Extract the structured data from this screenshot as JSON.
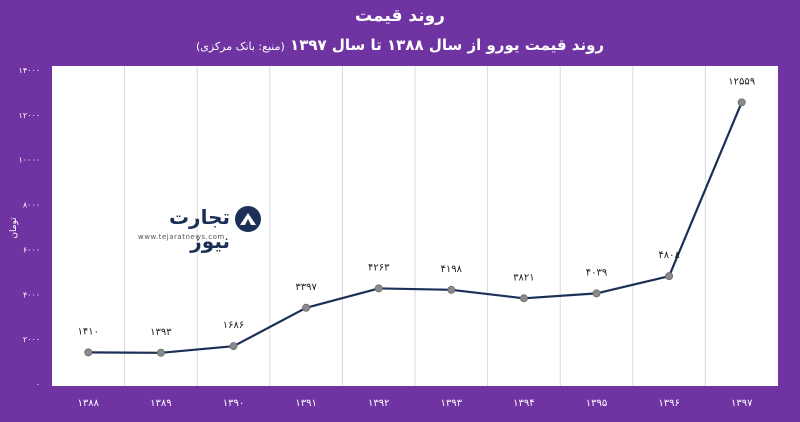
{
  "title": "روند قیمت",
  "subtitle": "روند قیمت یورو از سال ۱۳۸۸ تا سال ۱۳۹۷",
  "source": "(منبع: بانک مرکزی)",
  "watermark": {
    "name": "تجارت نیوز",
    "url": "www.tejaratnews.com"
  },
  "colors": {
    "background": "#6f34a2",
    "plot": "#ffffff",
    "line": "#1c2f57",
    "marker": "#8a8a8a",
    "grid": "#d9d9d9"
  },
  "chart_data": {
    "type": "line",
    "ylabel": "تومان",
    "ylim": [
      0,
      14000
    ],
    "yticks": [
      0,
      2000,
      4000,
      6000,
      8000,
      10000,
      12000,
      14000
    ],
    "ytick_labels": [
      "۰",
      "۲۰۰۰",
      "۴۰۰۰",
      "۶۰۰۰",
      "۸۰۰۰",
      "۱۰۰۰۰",
      "۱۲۰۰۰",
      "۱۴۰۰۰"
    ],
    "categories": [
      "۱۳۸۸",
      "۱۳۸۹",
      "۱۳۹۰",
      "۱۳۹۱",
      "۱۳۹۲",
      "۱۳۹۳",
      "۱۳۹۴",
      "۱۳۹۵",
      "۱۳۹۶",
      "۱۳۹۷"
    ],
    "values": [
      1410,
      1393,
      1686,
      3397,
      4263,
      4198,
      3821,
      4039,
      4808,
      12559
    ],
    "value_labels": [
      "۱۴۱۰",
      "۱۳۹۳",
      "۱۶۸۶",
      "۳۳۹۷",
      "۴۲۶۳",
      "۴۱۹۸",
      "۳۸۲۱",
      "۴۰۳۹",
      "۴۸۰۸",
      "۱۲۵۵۹"
    ],
    "grid": "vertical"
  }
}
